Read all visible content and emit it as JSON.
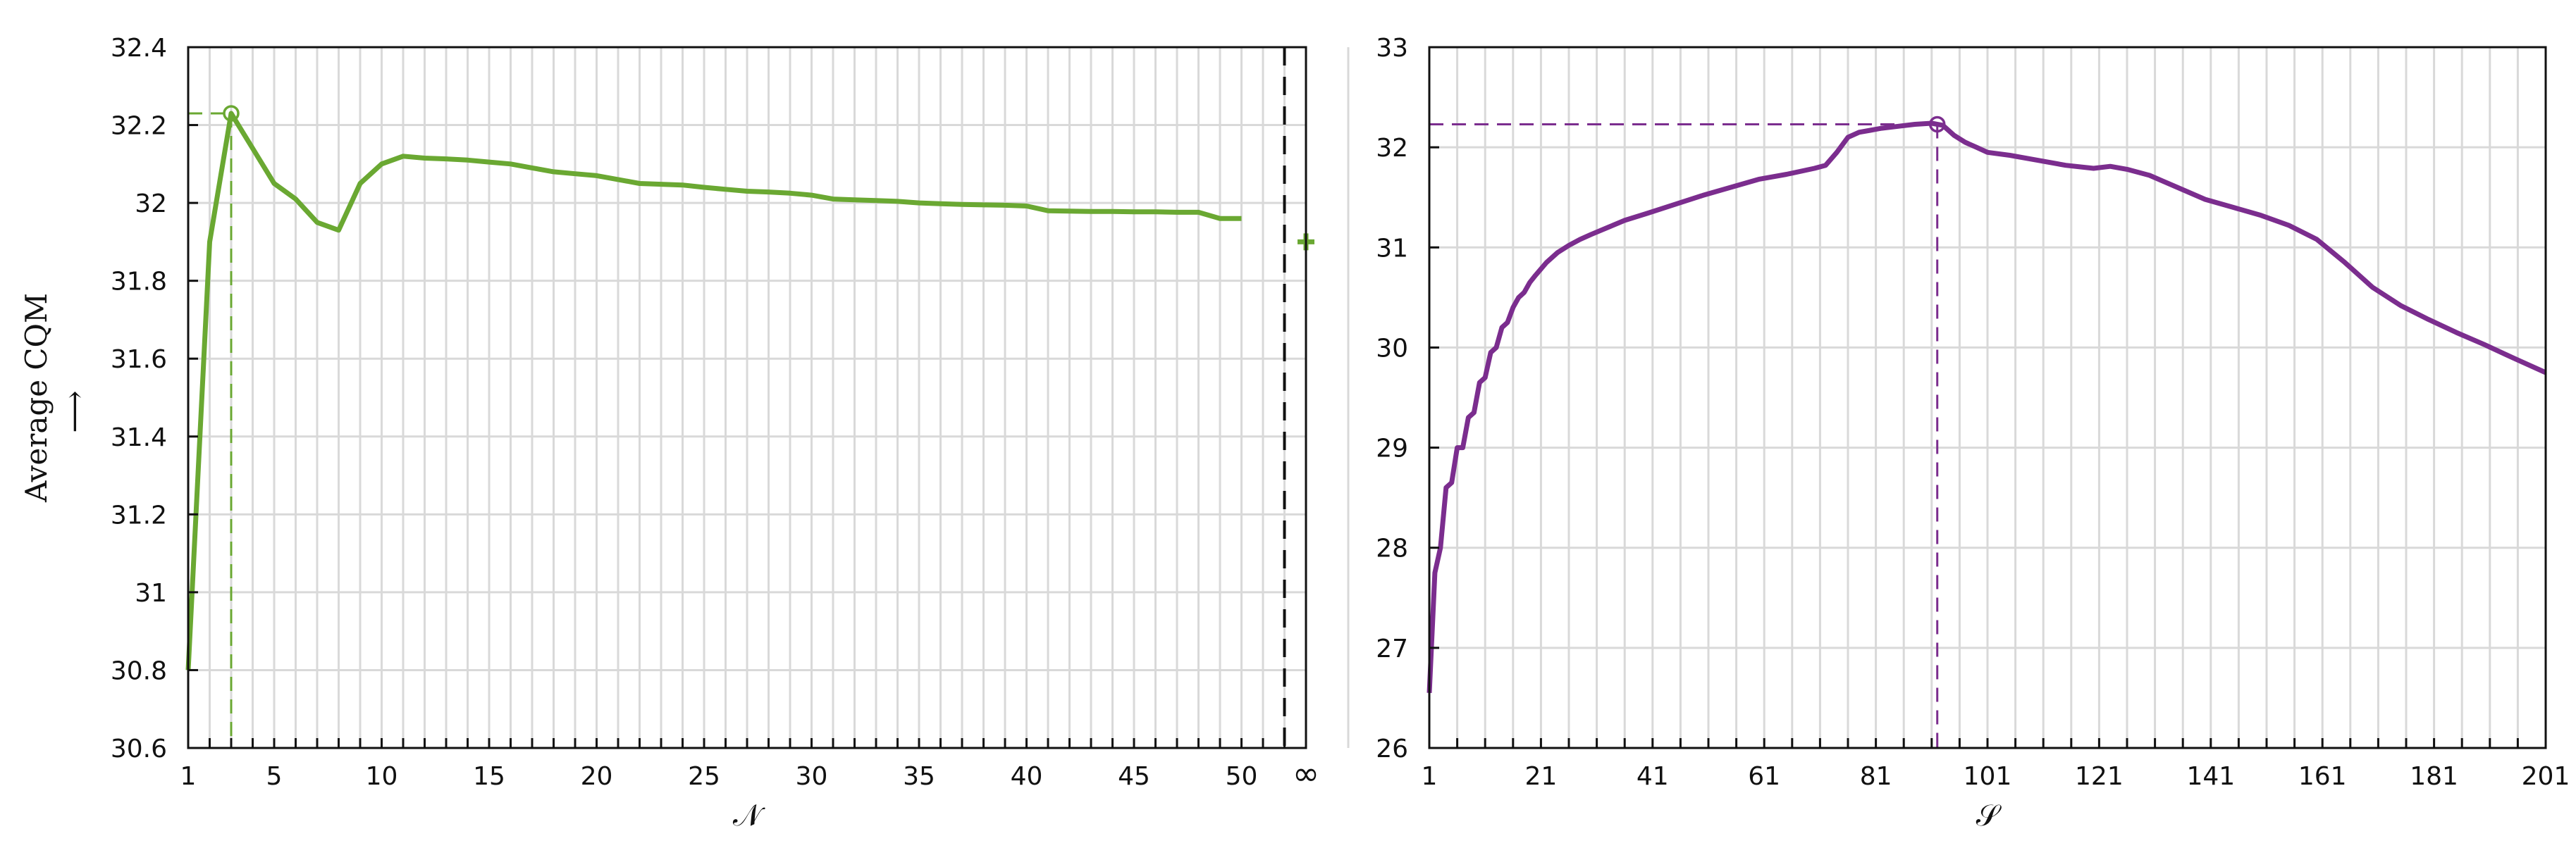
{
  "chart_data": [
    {
      "type": "line",
      "title": "",
      "xlabel": "𝒩",
      "ylabel": "Average CQM",
      "ylabel_arrow": "⟶",
      "xlim": [
        1,
        53
      ],
      "ylim": [
        30.6,
        32.4
      ],
      "xticks": [
        1,
        5,
        10,
        15,
        20,
        25,
        30,
        35,
        40,
        45,
        50
      ],
      "xtick_labels": [
        "1",
        "5",
        "10",
        "15",
        "20",
        "25",
        "30",
        "35",
        "40",
        "45",
        "50"
      ],
      "infinity_tick_label": "∞",
      "yticks": [
        30.6,
        30.8,
        31,
        31.2,
        31.4,
        31.6,
        31.8,
        32,
        32.2,
        32.4
      ],
      "ytick_labels": [
        "30.6",
        "30.8",
        "31",
        "31.2",
        "31.4",
        "31.6",
        "31.8",
        "32",
        "32.2",
        "32.4"
      ],
      "grid": true,
      "color": "#6aa832",
      "series": [
        {
          "name": "",
          "x": [
            1,
            2,
            3,
            4,
            5,
            6,
            7,
            8,
            9,
            10,
            11,
            12,
            13,
            14,
            15,
            16,
            17,
            18,
            19,
            20,
            21,
            22,
            23,
            24,
            25,
            26,
            27,
            28,
            29,
            30,
            31,
            32,
            33,
            34,
            35,
            36,
            37,
            38,
            39,
            40,
            41,
            42,
            43,
            44,
            45,
            46,
            47,
            48,
            49,
            50
          ],
          "y": [
            30.8,
            31.9,
            32.23,
            32.14,
            32.05,
            32.01,
            31.95,
            31.93,
            32.05,
            32.1,
            32.12,
            32.115,
            32.113,
            32.11,
            32.105,
            32.1,
            32.09,
            32.08,
            32.075,
            32.07,
            32.06,
            32.05,
            32.048,
            32.046,
            32.04,
            32.035,
            32.03,
            32.028,
            32.025,
            32.02,
            32.01,
            32.008,
            32.006,
            32.004,
            32.0,
            31.998,
            31.996,
            31.995,
            31.994,
            31.992,
            31.98,
            31.979,
            31.978,
            31.978,
            31.977,
            31.977,
            31.976,
            31.976,
            31.96,
            31.96
          ]
        }
      ],
      "optimum": {
        "x": 3,
        "y": 32.23
      },
      "separator_x": 52,
      "infinity_point": {
        "y": 31.9
      }
    },
    {
      "type": "line",
      "title": "",
      "xlabel": "𝒮",
      "ylabel": "",
      "xlim": [
        1,
        201
      ],
      "ylim": [
        26,
        33
      ],
      "xticks": [
        1,
        21,
        41,
        61,
        81,
        101,
        121,
        141,
        161,
        181,
        201
      ],
      "xtick_labels": [
        "1",
        "21",
        "41",
        "61",
        "81",
        "101",
        "121",
        "141",
        "161",
        "181",
        "201"
      ],
      "yticks": [
        26,
        27,
        28,
        29,
        30,
        31,
        32,
        33
      ],
      "ytick_labels": [
        "26",
        "27",
        "28",
        "29",
        "30",
        "31",
        "32",
        "33"
      ],
      "grid": true,
      "color": "#7b2d8e",
      "series": [
        {
          "name": "",
          "x": [
            1,
            2,
            3,
            4,
            5,
            6,
            7,
            8,
            9,
            10,
            11,
            12,
            13,
            14,
            15,
            16,
            17,
            18,
            19,
            20,
            22,
            24,
            26,
            28,
            30,
            33,
            36,
            40,
            45,
            50,
            55,
            60,
            65,
            70,
            72,
            74,
            76,
            78,
            80,
            82,
            85,
            88,
            91,
            93,
            95,
            97,
            99,
            101,
            105,
            110,
            115,
            120,
            123,
            126,
            130,
            135,
            140,
            145,
            150,
            155,
            160,
            165,
            170,
            175,
            180,
            185,
            190,
            195,
            201
          ],
          "y": [
            26.55,
            27.75,
            28.0,
            28.6,
            28.65,
            29.0,
            29.0,
            29.3,
            29.35,
            29.65,
            29.7,
            29.95,
            30.0,
            30.2,
            30.25,
            30.4,
            30.5,
            30.55,
            30.65,
            30.72,
            30.85,
            30.95,
            31.02,
            31.08,
            31.13,
            31.2,
            31.27,
            31.34,
            31.43,
            31.52,
            31.6,
            31.68,
            31.73,
            31.79,
            31.82,
            31.95,
            32.1,
            32.15,
            32.17,
            32.19,
            32.21,
            32.23,
            32.24,
            32.22,
            32.12,
            32.05,
            32.0,
            31.95,
            31.92,
            31.87,
            31.82,
            31.79,
            31.81,
            31.78,
            31.72,
            31.6,
            31.48,
            31.4,
            31.32,
            31.22,
            31.08,
            30.85,
            30.6,
            30.42,
            30.28,
            30.15,
            30.03,
            29.9,
            29.75
          ]
        }
      ],
      "optimum": {
        "x": 92,
        "y": 32.23
      }
    }
  ]
}
